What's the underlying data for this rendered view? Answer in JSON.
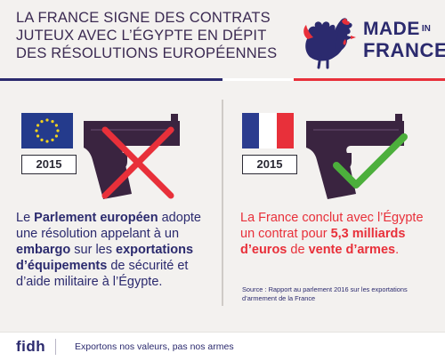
{
  "title": {
    "line1": "LA FRANCE SIGNE DES CONTRATS",
    "line2": "JUTEUX AVEC L’ÉGYPTE EN DÉPIT",
    "line3": "DES RÉSOLUTIONS EUROPÉENNES"
  },
  "brand": {
    "made": "MADE",
    "in": "IN",
    "france": "FRANCE"
  },
  "left": {
    "year": "2015",
    "t1": "Le ",
    "t2": "Parlement européen",
    "t3": " adopte une résolution appelant à un ",
    "t4": "embargo",
    "t5": " sur les ",
    "t6": "exportations d’équipements",
    "t7": " de sécurité et d’aide militaire à l’Égypte."
  },
  "right": {
    "year": "2015",
    "t1": "La France conclut avec l’Égypte un contrat pour ",
    "t2": "5,3 milliards d’euros",
    "t3": " de ",
    "t4": "vente d’armes",
    "t5": "."
  },
  "source": "Source : Rapport au parlement 2016 sur les exportations d’armement de la France",
  "footer": {
    "logo": "fidh",
    "slogan": "Exportons nos valeurs, pas nos armes"
  },
  "colors": {
    "navy": "#2b2a6e",
    "red": "#e8303a",
    "green": "#4caf3c",
    "gun": "#3a2440",
    "eu_blue": "#243b8c",
    "eu_star": "#f3d21d"
  },
  "icons": [
    "rooster-logo-icon",
    "eu-flag-icon",
    "france-flag-icon",
    "pistol-icon",
    "cross-icon",
    "checkmark-icon"
  ]
}
